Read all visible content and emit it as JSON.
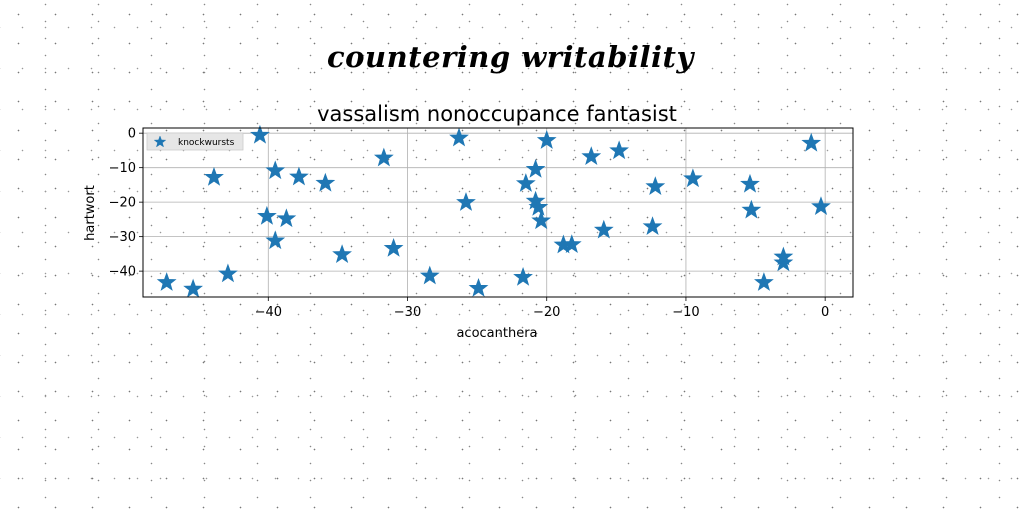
{
  "page_title": "countering writability",
  "chart_data": {
    "type": "scatter",
    "title": "vassalism nonoccupance fantasist",
    "xlabel": "acocanthera",
    "ylabel": "hartwort",
    "xlim": [
      -49,
      2
    ],
    "ylim": [
      -47.5,
      1.5
    ],
    "xticks": [
      -40,
      -30,
      -20,
      -10,
      0
    ],
    "yticks": [
      0,
      -10,
      -20,
      -30,
      -40
    ],
    "xtick_labels": [
      "−40",
      "−30",
      "−20",
      "−10",
      "0"
    ],
    "ytick_labels": [
      "0",
      "−10",
      "−20",
      "−30",
      "−40"
    ],
    "grid": true,
    "legend_position": "top-left",
    "series": [
      {
        "name": "knockwursts",
        "color": "#1f77b4",
        "marker": "star",
        "x": [
          -47.3,
          -45.4,
          -43.9,
          -42.9,
          -40.6,
          -40.1,
          -39.5,
          -39.5,
          -38.7,
          -37.8,
          -35.9,
          -34.7,
          -31.7,
          -31.0,
          -28.4,
          -26.3,
          -25.8,
          -24.9,
          -21.7,
          -21.5,
          -20.8,
          -20.8,
          -20.6,
          -20.4,
          -20.0,
          -18.8,
          -18.2,
          -16.8,
          -15.9,
          -14.8,
          -12.4,
          -12.2,
          -9.5,
          -5.4,
          -5.3,
          -4.4,
          -3.0,
          -3.0,
          -1.0,
          -0.3
        ],
        "y": [
          -43.3,
          -45.2,
          -12.8,
          -40.8,
          -0.6,
          -24.1,
          -31.2,
          -10.9,
          -24.8,
          -12.7,
          -14.5,
          -35.2,
          -7.2,
          -33.4,
          -41.4,
          -1.4,
          -20.1,
          -45.0,
          -41.8,
          -14.6,
          -10.5,
          -19.7,
          -21.5,
          -25.4,
          -2.1,
          -32.4,
          -32.3,
          -6.8,
          -28.1,
          -5.1,
          -27.1,
          -15.5,
          -13.2,
          -14.8,
          -22.3,
          -43.3,
          -37.6,
          -35.9,
          -2.9,
          -21.3
        ]
      }
    ]
  }
}
